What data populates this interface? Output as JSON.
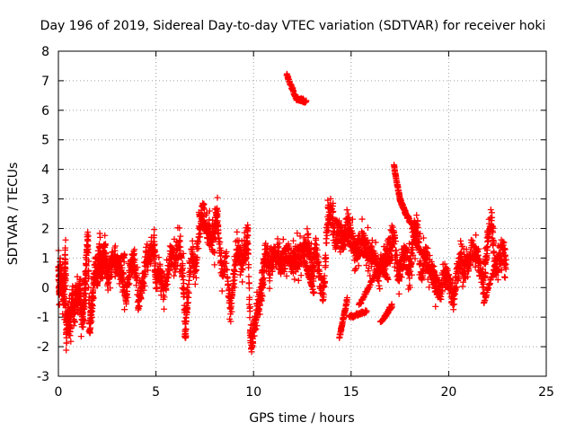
{
  "chart_data": {
    "type": "scatter",
    "title": "Day 196 of 2019, Sidereal Day-to-day VTEC variation (SDTVAR) for receiver hoki",
    "xlabel": "GPS time / hours",
    "ylabel": "SDTVAR / TECUs",
    "xlim": [
      0,
      25
    ],
    "ylim": [
      -3,
      8
    ],
    "xticks": [
      "0",
      "5",
      "10",
      "15",
      "20",
      "25"
    ],
    "yticks": [
      "-3",
      "-2",
      "-1",
      "0",
      "1",
      "2",
      "3",
      "4",
      "5",
      "6",
      "7",
      "8"
    ],
    "grid": true,
    "marker": "plus",
    "color": "#ff0000",
    "series": [
      {
        "name": "SDTVAR",
        "trace": [
          [
            0.0,
            0.6
          ],
          [
            0.05,
            -0.3
          ],
          [
            0.1,
            0.7
          ],
          [
            0.2,
            0.0
          ],
          [
            0.3,
            -0.5
          ],
          [
            0.35,
            1.3
          ],
          [
            0.4,
            -1.8
          ],
          [
            0.5,
            -0.8
          ],
          [
            0.6,
            -1.2
          ],
          [
            0.7,
            -0.4
          ],
          [
            0.8,
            -0.9
          ],
          [
            0.9,
            -0.2
          ],
          [
            1.0,
            -0.5
          ],
          [
            1.1,
            0.0
          ],
          [
            1.2,
            -1.2
          ],
          [
            1.3,
            -0.6
          ],
          [
            1.4,
            0.3
          ],
          [
            1.5,
            1.8
          ],
          [
            1.6,
            -1.3
          ],
          [
            1.7,
            -0.8
          ],
          [
            1.8,
            0.0
          ],
          [
            1.9,
            0.8
          ],
          [
            2.0,
            0.3
          ],
          [
            2.1,
            1.2
          ],
          [
            2.2,
            0.6
          ],
          [
            2.3,
            1.1
          ],
          [
            2.4,
            1.3
          ],
          [
            2.5,
            0.3
          ],
          [
            2.7,
            0.8
          ],
          [
            2.9,
            0.9
          ],
          [
            3.1,
            0.6
          ],
          [
            3.3,
            0.3
          ],
          [
            3.5,
            -0.3
          ],
          [
            3.7,
            0.7
          ],
          [
            3.9,
            1.0
          ],
          [
            4.1,
            -0.6
          ],
          [
            4.3,
            0.2
          ],
          [
            4.5,
            0.9
          ],
          [
            4.7,
            1.1
          ],
          [
            4.9,
            1.5
          ],
          [
            5.0,
            0.2
          ],
          [
            5.2,
            0.6
          ],
          [
            5.4,
            -0.2
          ],
          [
            5.6,
            0.5
          ],
          [
            5.8,
            1.2
          ],
          [
            6.0,
            0.8
          ],
          [
            6.2,
            1.4
          ],
          [
            6.4,
            0.3
          ],
          [
            6.5,
            -1.6
          ],
          [
            6.6,
            -0.6
          ],
          [
            6.8,
            1.0
          ],
          [
            7.0,
            0.5
          ],
          [
            7.2,
            1.8
          ],
          [
            7.4,
            2.6
          ],
          [
            7.6,
            1.9
          ],
          [
            7.8,
            1.7
          ],
          [
            8.0,
            1.5
          ],
          [
            8.1,
            2.6
          ],
          [
            8.2,
            1.8
          ],
          [
            8.4,
            0.6
          ],
          [
            8.6,
            1.0
          ],
          [
            8.8,
            -0.8
          ],
          [
            9.0,
            0.3
          ],
          [
            9.2,
            1.5
          ],
          [
            9.4,
            0.8
          ],
          [
            9.6,
            1.2
          ],
          [
            9.7,
            2.0
          ],
          [
            9.85,
            -2.0
          ],
          [
            10.0,
            -1.5
          ],
          [
            10.2,
            -0.7
          ],
          [
            10.4,
            -0.2
          ],
          [
            10.5,
            0.5
          ],
          [
            10.6,
            1.3
          ],
          [
            10.8,
            0.6
          ],
          [
            11.0,
            0.9
          ],
          [
            11.2,
            1.2
          ],
          [
            11.4,
            0.8
          ],
          [
            11.6,
            1.0
          ],
          [
            11.8,
            1.2
          ],
          [
            12.0,
            0.9
          ],
          [
            12.2,
            1.0
          ],
          [
            12.4,
            1.1
          ],
          [
            12.6,
            1.2
          ],
          [
            12.8,
            1.5
          ],
          [
            13.0,
            0.6
          ],
          [
            13.2,
            1.4
          ],
          [
            13.4,
            0.2
          ],
          [
            13.6,
            -0.2
          ],
          [
            13.8,
            2.4
          ],
          [
            14.0,
            2.5
          ],
          [
            14.2,
            1.6
          ],
          [
            14.4,
            2.0
          ],
          [
            14.6,
            1.4
          ],
          [
            14.8,
            2.3
          ],
          [
            15.0,
            1.7
          ],
          [
            15.2,
            1.2
          ],
          [
            15.4,
            1.4
          ],
          [
            15.6,
            1.7
          ],
          [
            15.8,
            1.3
          ],
          [
            16.0,
            1.1
          ],
          [
            16.2,
            0.9
          ],
          [
            16.4,
            0.5
          ],
          [
            16.6,
            0.8
          ],
          [
            16.8,
            1.0
          ],
          [
            17.0,
            1.5
          ],
          [
            17.2,
            1.8
          ],
          [
            17.4,
            0.4
          ],
          [
            17.6,
            0.9
          ],
          [
            17.8,
            1.1
          ],
          [
            18.0,
            0.6
          ],
          [
            18.2,
            1.7
          ],
          [
            18.4,
            1.9
          ],
          [
            18.6,
            0.4
          ],
          [
            18.8,
            1.3
          ],
          [
            19.0,
            0.8
          ],
          [
            19.2,
            0.3
          ],
          [
            19.4,
            0.1
          ],
          [
            19.6,
            -0.2
          ],
          [
            19.8,
            0.5
          ],
          [
            20.0,
            0.2
          ],
          [
            20.2,
            -0.5
          ],
          [
            20.4,
            0.3
          ],
          [
            20.6,
            1.0
          ],
          [
            20.8,
            0.6
          ],
          [
            21.0,
            0.8
          ],
          [
            21.2,
            1.3
          ],
          [
            21.4,
            1.1
          ],
          [
            21.6,
            0.7
          ],
          [
            21.8,
            0.0
          ],
          [
            22.0,
            1.7
          ],
          [
            22.2,
            2.3
          ],
          [
            22.4,
            0.5
          ],
          [
            22.6,
            1.0
          ],
          [
            22.8,
            1.3
          ],
          [
            22.95,
            0.8
          ]
        ],
        "segments": [
          {
            "x": [
              11.7,
              12.2
            ],
            "y": [
              7.2,
              6.4
            ]
          },
          {
            "x": [
              12.2,
              12.7
            ],
            "y": [
              6.4,
              6.3
            ]
          },
          {
            "x": [
              17.2,
              17.5
            ],
            "y": [
              4.1,
              3.0
            ]
          },
          {
            "x": [
              17.5,
              17.8
            ],
            "y": [
              3.0,
              2.5
            ]
          },
          {
            "x": [
              17.8,
              18.4
            ],
            "y": [
              2.5,
              1.8
            ]
          },
          {
            "x": [
              14.2,
              15.0
            ],
            "y": [
              2.3,
              1.4
            ]
          },
          {
            "x": [
              15.0,
              16.2
            ],
            "y": [
              1.4,
              0.9
            ]
          },
          {
            "x": [
              16.2,
              16.9
            ],
            "y": [
              0.9,
              0.3
            ]
          },
          {
            "x": [
              14.9,
              15.8
            ],
            "y": [
              -1.0,
              -0.8
            ]
          },
          {
            "x": [
              15.4,
              16.3
            ],
            "y": [
              -0.6,
              0.5
            ]
          },
          {
            "x": [
              16.3,
              17.1
            ],
            "y": [
              0.5,
              1.0
            ]
          },
          {
            "x": [
              16.5,
              17.1
            ],
            "y": [
              -1.2,
              -0.6
            ]
          },
          {
            "x": [
              14.4,
              14.8
            ],
            "y": [
              -1.7,
              -0.4
            ]
          },
          {
            "x": [
              12.6,
              13.1
            ],
            "y": [
              0.9,
              -0.2
            ]
          },
          {
            "x": [
              18.2,
              19.4
            ],
            "y": [
              1.7,
              0.2
            ]
          },
          {
            "x": [
              21.8,
              22.6
            ],
            "y": [
              -0.5,
              1.2
            ]
          },
          {
            "x": [
              2.6,
              3.4
            ],
            "y": [
              0.7,
              1.1
            ]
          },
          {
            "x": [
              7.2,
              7.9
            ],
            "y": [
              2.5,
              1.6
            ]
          }
        ]
      }
    ]
  }
}
